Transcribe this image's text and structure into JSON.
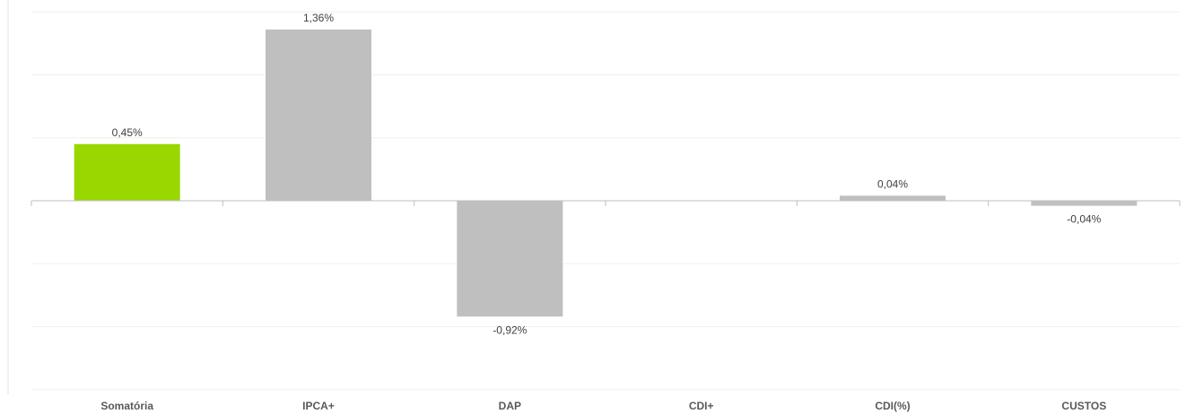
{
  "chart_data": {
    "type": "bar",
    "title": "",
    "xlabel": "",
    "ylabel": "",
    "categories": [
      "Somatória",
      "IPCA+",
      "DAP",
      "CDI+",
      "CDI(%)",
      "CUSTOS"
    ],
    "values": [
      0.45,
      1.36,
      -0.92,
      0.0,
      0.04,
      -0.04
    ],
    "value_labels": [
      "0,45%",
      "1,36%",
      "-0,92%",
      "",
      "0,04%",
      "-0,04%"
    ],
    "ylim": [
      -1.5,
      1.5
    ],
    "gridlines": [
      -1.5,
      -1.0,
      -0.5,
      0.5,
      1.0,
      1.5
    ],
    "grid": true,
    "legend": "none",
    "colors": {
      "highlight": "#99d700",
      "default": "#bfbfbf",
      "grid": "#f0f0f0",
      "axis": "#bfbfbf"
    },
    "highlight_index": 0
  }
}
